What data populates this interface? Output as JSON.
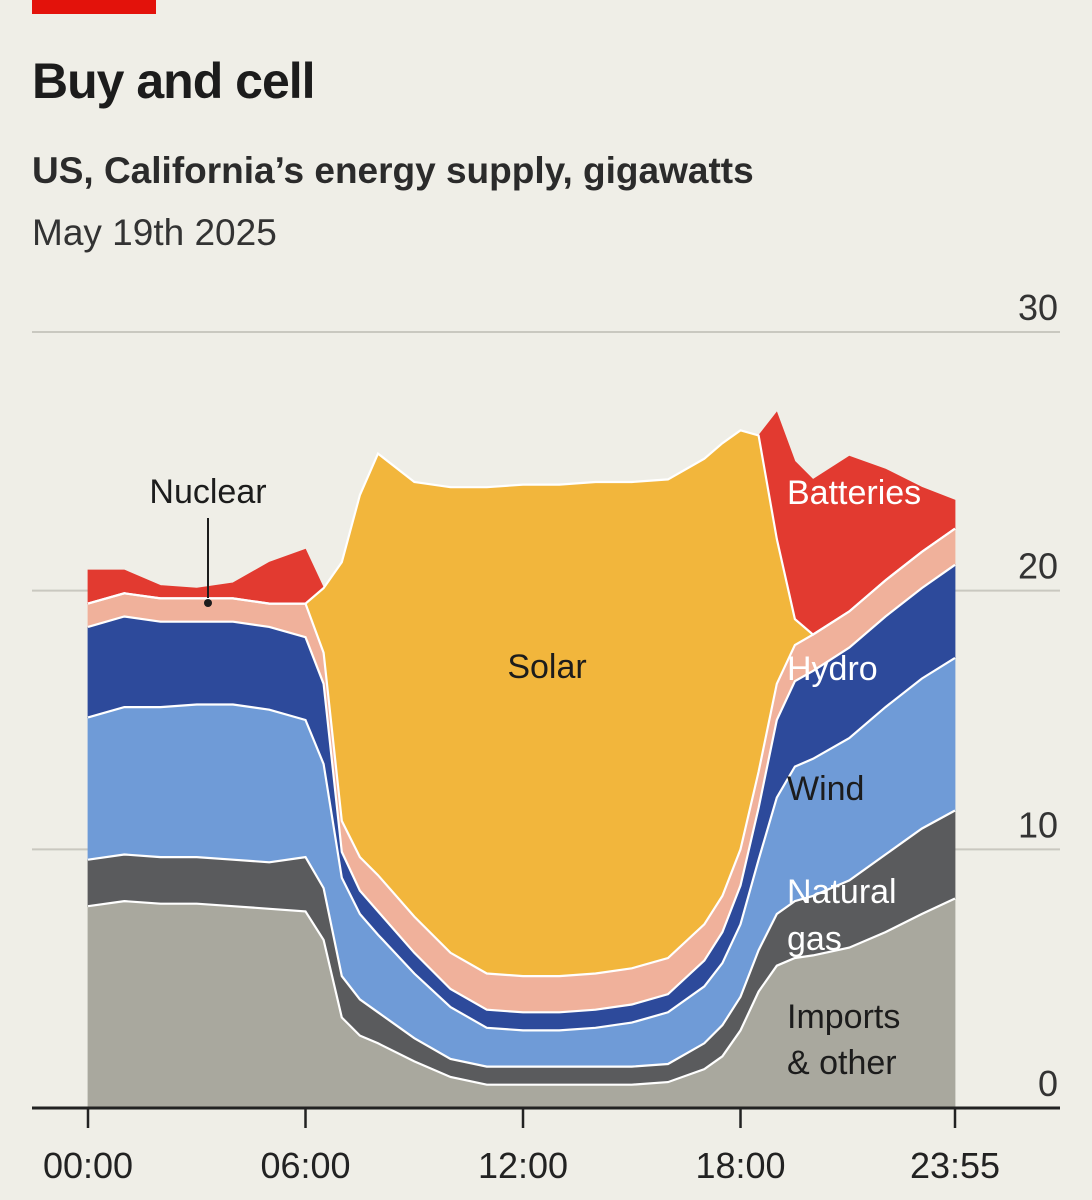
{
  "header": {
    "title": "Buy and cell",
    "subtitle": "US, California’s energy supply, gigawatts",
    "date": "May 19th 2025"
  },
  "chart_data": {
    "type": "area",
    "stacked": true,
    "x": [
      "00:00",
      "01:00",
      "02:00",
      "03:00",
      "04:00",
      "05:00",
      "06:00",
      "06:30",
      "07:00",
      "07:30",
      "08:00",
      "09:00",
      "10:00",
      "11:00",
      "12:00",
      "13:00",
      "14:00",
      "15:00",
      "16:00",
      "17:00",
      "17:30",
      "18:00",
      "18:30",
      "19:00",
      "19:30",
      "20:00",
      "21:00",
      "22:00",
      "23:00",
      "23:55"
    ],
    "x_ticks": [
      "00:00",
      "06:00",
      "12:00",
      "18:00",
      "23:55"
    ],
    "y_ticks": [
      "0",
      "10",
      "20",
      "30"
    ],
    "ylim": [
      0,
      30
    ],
    "grid": true,
    "series": [
      {
        "name": "Imports & other",
        "color": "#a9a89e",
        "values": [
          7.8,
          8.0,
          7.9,
          7.9,
          7.8,
          7.7,
          7.6,
          6.5,
          3.5,
          2.8,
          2.5,
          1.8,
          1.2,
          0.9,
          0.9,
          0.9,
          0.9,
          0.9,
          1.0,
          1.5,
          2.0,
          3.0,
          4.5,
          5.5,
          5.8,
          5.9,
          6.2,
          6.8,
          7.5,
          8.1
        ]
      },
      {
        "name": "Natural gas",
        "color": "#5a5b5d",
        "values": [
          1.8,
          1.8,
          1.8,
          1.8,
          1.8,
          1.8,
          2.1,
          2.0,
          1.6,
          1.4,
          1.2,
          0.9,
          0.7,
          0.7,
          0.7,
          0.7,
          0.7,
          0.7,
          0.7,
          1.0,
          1.2,
          1.3,
          1.6,
          2.0,
          2.2,
          2.3,
          2.6,
          3.0,
          3.3,
          3.4
        ]
      },
      {
        "name": "Wind",
        "color": "#6f9bd7",
        "values": [
          5.5,
          5.7,
          5.8,
          5.9,
          6.0,
          5.9,
          5.3,
          4.8,
          3.8,
          3.3,
          3.0,
          2.5,
          2.0,
          1.5,
          1.4,
          1.4,
          1.5,
          1.7,
          2.0,
          2.2,
          2.4,
          2.8,
          3.5,
          4.5,
          5.2,
          5.3,
          5.5,
          5.7,
          5.8,
          5.9
        ]
      },
      {
        "name": "Hydro",
        "color": "#2d4a9b",
        "values": [
          3.5,
          3.5,
          3.3,
          3.2,
          3.2,
          3.2,
          3.2,
          3.1,
          1.0,
          0.9,
          0.9,
          0.8,
          0.7,
          0.7,
          0.7,
          0.7,
          0.7,
          0.7,
          0.7,
          1.0,
          1.2,
          1.5,
          2.0,
          3.0,
          3.3,
          3.4,
          3.5,
          3.5,
          3.5,
          3.6
        ]
      },
      {
        "name": "Nuclear",
        "color": "#f0b19b",
        "values": [
          0.9,
          0.9,
          0.9,
          0.9,
          0.9,
          0.9,
          1.3,
          1.2,
          1.2,
          1.3,
          1.4,
          1.4,
          1.4,
          1.4,
          1.4,
          1.4,
          1.4,
          1.4,
          1.4,
          1.4,
          1.4,
          1.4,
          1.4,
          1.4,
          1.4,
          1.4,
          1.4,
          1.4,
          1.4,
          1.4
        ]
      },
      {
        "name": "Solar",
        "color": "#f2b63c",
        "values": [
          0,
          0,
          0,
          0,
          0,
          0,
          0,
          2.5,
          10.0,
          14.0,
          16.3,
          16.8,
          18.0,
          18.8,
          19.0,
          19.0,
          19.0,
          18.8,
          18.5,
          18.0,
          17.5,
          16.2,
          13.0,
          5.6,
          1.0,
          0,
          0,
          0,
          0,
          0
        ]
      },
      {
        "name": "Batteries",
        "color": "#e23a30",
        "values": [
          1.3,
          0.9,
          0.5,
          0.4,
          0.6,
          1.6,
          2.1,
          0.0,
          0.0,
          0.0,
          0.0,
          0.0,
          0.0,
          0.0,
          0.0,
          0.0,
          0.0,
          0.0,
          0.0,
          0.0,
          0.0,
          0.0,
          0.0,
          4.9,
          6.1,
          6.0,
          6.0,
          4.3,
          2.5,
          1.1
        ]
      }
    ],
    "labels": [
      "Nuclear",
      "Batteries",
      "Solar",
      "Hydro",
      "Wind",
      "Natural gas",
      "Imports & other"
    ],
    "label_lines": {
      "natural_gas": [
        "Natural",
        "gas"
      ],
      "imports": [
        "Imports",
        "& other"
      ]
    }
  }
}
